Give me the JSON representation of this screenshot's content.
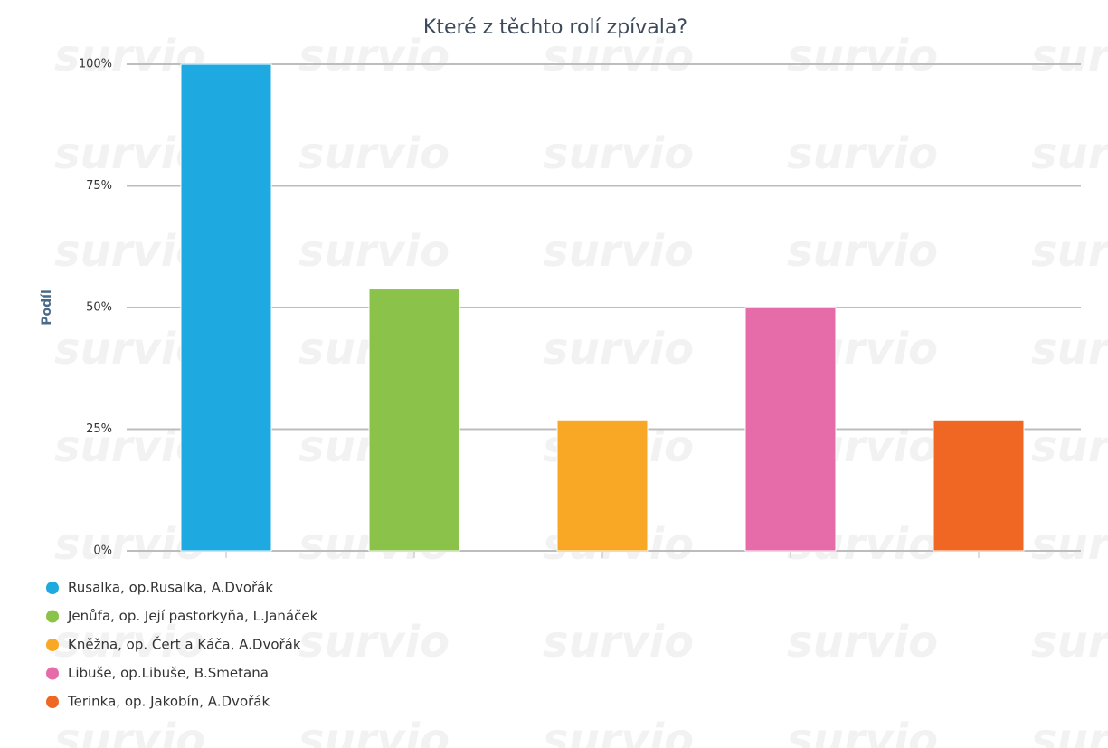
{
  "chart_data": {
    "type": "bar",
    "title": "Které z těchto rolí zpívala?",
    "y_label": "Podíl",
    "watermark": "survio",
    "categories": [
      "Rusalka, op.Rusalka, A.Dvořák",
      "Jenůfa, op. Její pastorkyňa, L.Janáček",
      "Kněžna, op. Čert a Káča, A.Dvořák",
      "Libuše, op.Libuše, B.Smetana",
      "Terinka, op. Jakobín, A.Dvořák"
    ],
    "values": [
      100,
      53.8,
      26.9,
      50,
      26.9
    ],
    "colors": [
      "#1ea9e1",
      "#8bc34a",
      "#f9a825",
      "#e56ca9",
      "#f06724"
    ],
    "ylim": [
      0,
      100
    ],
    "yticks": [
      {
        "value": 0,
        "label": "0%"
      },
      {
        "value": 25,
        "label": "25%"
      },
      {
        "value": 50,
        "label": "50%"
      },
      {
        "value": 75,
        "label": "75%"
      },
      {
        "value": 100,
        "label": "100%"
      }
    ],
    "grid": true,
    "legend": "bottom"
  }
}
